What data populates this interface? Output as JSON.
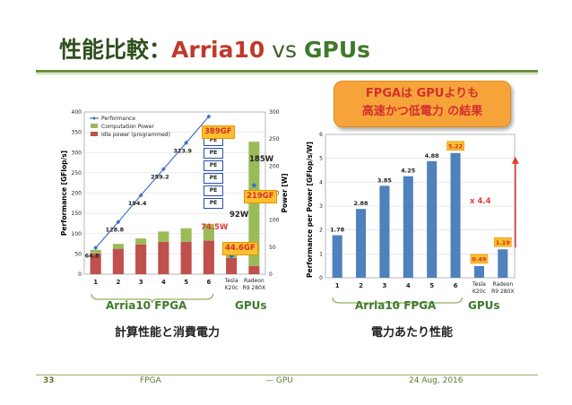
{
  "slide": {
    "title_main": "性能比較：",
    "title_arria": "Arria10",
    "title_vs": " vs ",
    "title_gpus": "GPUs",
    "conclusion_line1": "FPGAは GPUよりも",
    "conclusion_line2": "高速かつ低電力 の結果",
    "left_caption": "計算性能と消費電力",
    "right_caption": "電力あたり性能",
    "left_fpga_label": "Arria10 FPGA",
    "left_gpu_label": "GPUs",
    "right_fpga_label": "Arria10 FPGA",
    "right_gpu_label": "GPUs"
  },
  "footer": {
    "page": "33",
    "left": "FPGA",
    "middle": "— GPU",
    "date": "24 Aug, 2016"
  },
  "annotations": {
    "perf_389": "389GF",
    "perf_219": "219GF",
    "perf_44": "44.6GF",
    "power_185": "185W",
    "power_92": "92W",
    "power_74": "74.5W",
    "ratio": "x 4.4"
  },
  "pe_blocks": [
    "PE",
    "PE",
    "PE",
    "PE",
    "PE",
    "PE"
  ],
  "colors": {
    "title_green": "#3d7a2a",
    "accent_red": "#c0392b",
    "performance_line": "#4472c4",
    "computation_power": "#9bbb59",
    "idle_power": "#c0504d",
    "efficiency_bar": "#4f81bd",
    "callout_orange": "#fbc02d"
  },
  "chart_data": [
    {
      "type": "bar",
      "categories": [
        "1",
        "2",
        "3",
        "4",
        "5",
        "6",
        "Tesla K20c",
        "Radeon R9 280X"
      ],
      "series": [
        {
          "name": "Idle power (programmed)",
          "values": [
            38,
            47,
            55,
            60,
            60,
            62,
            30,
            15
          ]
        },
        {
          "name": "Computation Power",
          "values": [
            7,
            9,
            11,
            19,
            25,
            31,
            25,
            230
          ]
        },
        {
          "name": "Performance",
          "values": [
            64.8,
            128.8,
            194.4,
            259.2,
            323.9,
            389,
            44.6,
            219
          ]
        }
      ],
      "ylabel": "Performance [GFlop/s]",
      "y2label": "Power [W]",
      "ylim": [
        0,
        400
      ],
      "y2lim": [
        0,
        300
      ],
      "yticks": [
        0,
        50,
        100,
        150,
        200,
        250,
        300,
        350,
        400
      ],
      "y2ticks": [
        0,
        50,
        100,
        150,
        200,
        250,
        300
      ],
      "data_labels": [
        "64.8",
        "128.8",
        "194.4",
        "259.2",
        "323.9"
      ],
      "legend": [
        "Performance",
        "Computation Power",
        "Idle power (programmed)"
      ],
      "legend_position": "top-left"
    },
    {
      "type": "bar",
      "categories": [
        "1",
        "2",
        "3",
        "4",
        "5",
        "6",
        "Tesla K20c",
        "Radeon R9 280X"
      ],
      "values": [
        1.78,
        2.88,
        3.85,
        4.25,
        4.88,
        5.22,
        0.49,
        1.19
      ],
      "data_labels": [
        "1.78",
        "2.88",
        "3.85",
        "4.25",
        "4.88",
        "5.22",
        "0.49",
        "1.19"
      ],
      "ylabel": "Performance per Power [GFlop/s/W]",
      "ylim": [
        0,
        6
      ],
      "yticks": [
        0,
        1,
        2,
        3,
        4,
        5,
        6
      ]
    }
  ]
}
